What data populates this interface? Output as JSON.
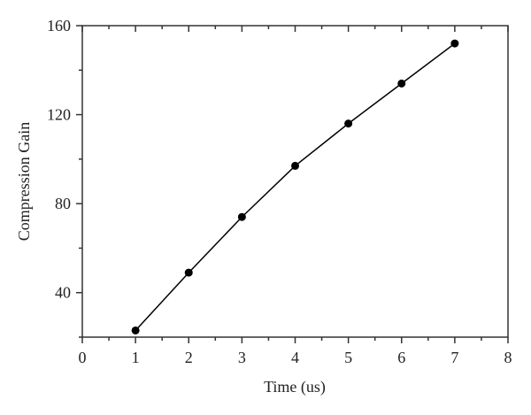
{
  "chart_data": {
    "type": "line",
    "title": "",
    "xlabel": "Time (us)",
    "ylabel": "Compression Gain",
    "x": [
      1,
      2,
      3,
      4,
      5,
      6,
      7
    ],
    "series": [
      {
        "name": "Compression Gain",
        "values": [
          23,
          49,
          74,
          97,
          116,
          134,
          152
        ],
        "marker": "circle",
        "color": "#000000"
      }
    ],
    "xlim": [
      0,
      8
    ],
    "ylim": [
      20,
      160
    ],
    "xticks": [
      0,
      1,
      2,
      3,
      4,
      5,
      6,
      7,
      8
    ],
    "yticks": [
      40,
      80,
      120,
      160
    ],
    "grid": false,
    "legend": "none"
  }
}
